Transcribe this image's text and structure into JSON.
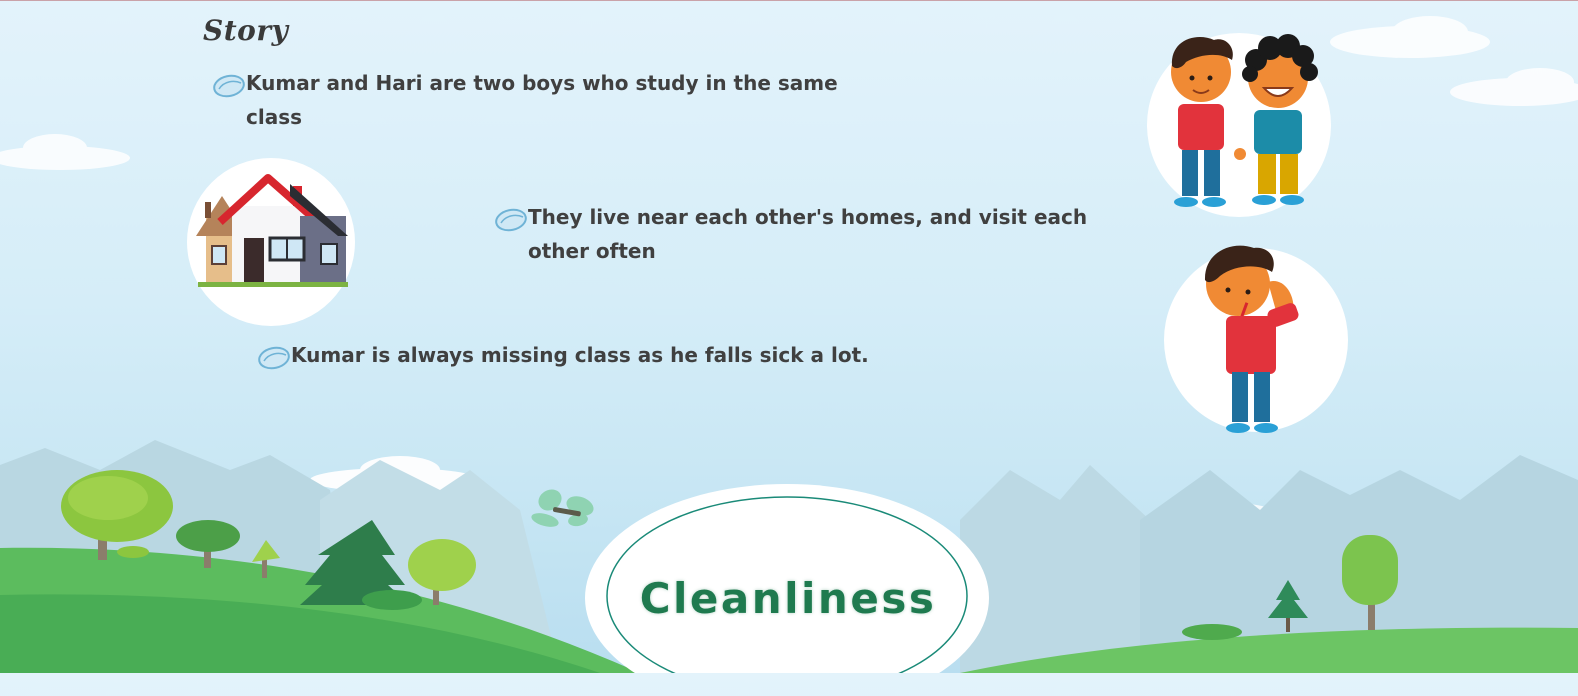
{
  "story": {
    "title": "Story",
    "bullets": [
      "Kumar and Hari are two boys who study in the same class",
      "They live near each other's homes, and visit each other often",
      "Kumar is always missing class as he falls sick a lot."
    ]
  },
  "badge": {
    "text": "Cleanliness"
  },
  "icons": {
    "bullet": "bean-bullet-icon",
    "house": "house-icon",
    "boys": "two-boys-holding-hands-icon",
    "sick_boy": "sick-boy-icon"
  },
  "colors": {
    "sky": "#dbeff9",
    "hill": "#5cbc5e",
    "text": "#404040",
    "badge_text": "#1f7a4f",
    "badge_ring": "#1a8a78"
  }
}
